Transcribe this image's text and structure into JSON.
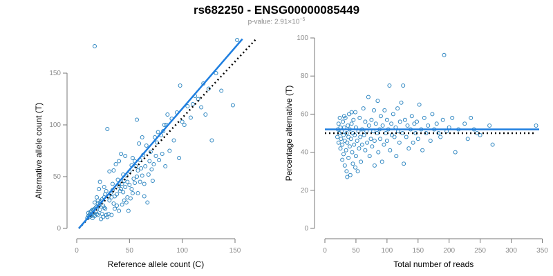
{
  "title": "rs682250 - ENSG00000085449",
  "subtitle_prefix": "p-value: 2.91×10",
  "subtitle_exp": "−5",
  "colors": {
    "points": "#2e86c1",
    "fit": "#1f7fe0",
    "reference": "#000000",
    "axis": "#777777",
    "tick_text": "#8c8c8c",
    "label_text": "#000000"
  },
  "chart_data": [
    {
      "type": "scatter",
      "xlabel": "Reference allele count (C)",
      "ylabel": "Alternative allele count (T)",
      "xlim": [
        0,
        165
      ],
      "ylim": [
        -5,
        185
      ],
      "xticks": [
        0,
        50,
        100,
        150
      ],
      "yticks": [
        0,
        50,
        100,
        150
      ],
      "fit_line": [
        [
          2,
          0
        ],
        [
          157,
          183
        ]
      ],
      "reference_line": [
        [
          2,
          0
        ],
        [
          170,
          183
        ]
      ],
      "points": [
        [
          10,
          10
        ],
        [
          11,
          12
        ],
        [
          12,
          11
        ],
        [
          12,
          13
        ],
        [
          13,
          14
        ],
        [
          11,
          15
        ],
        [
          14,
          12
        ],
        [
          15,
          14
        ],
        [
          16,
          13
        ],
        [
          13,
          16
        ],
        [
          14,
          17
        ],
        [
          15,
          10
        ],
        [
          16,
          15
        ],
        [
          17,
          12
        ],
        [
          15,
          18
        ],
        [
          16,
          18
        ],
        [
          17,
          19
        ],
        [
          18,
          16
        ],
        [
          19,
          14
        ],
        [
          20,
          13
        ],
        [
          18,
          20
        ],
        [
          19,
          21
        ],
        [
          20,
          24
        ],
        [
          21,
          22
        ],
        [
          22,
          18
        ],
        [
          17,
          25
        ],
        [
          20,
          27
        ],
        [
          22,
          25
        ],
        [
          23,
          26
        ],
        [
          24,
          28
        ],
        [
          25,
          22
        ],
        [
          26,
          20
        ],
        [
          27,
          19
        ],
        [
          24,
          14
        ],
        [
          25,
          11
        ],
        [
          28,
          13
        ],
        [
          30,
          14
        ],
        [
          26,
          30
        ],
        [
          27,
          33
        ],
        [
          28,
          36
        ],
        [
          30,
          31
        ],
        [
          31,
          27
        ],
        [
          32,
          34
        ],
        [
          33,
          30
        ],
        [
          34,
          37
        ],
        [
          35,
          24
        ],
        [
          36,
          19
        ],
        [
          36,
          31
        ],
        [
          38,
          33
        ],
        [
          38,
          22
        ],
        [
          40,
          17
        ],
        [
          40,
          41
        ],
        [
          41,
          36
        ],
        [
          42,
          38
        ],
        [
          43,
          43
        ],
        [
          44,
          35
        ],
        [
          45,
          46
        ],
        [
          45,
          27
        ],
        [
          46,
          40
        ],
        [
          47,
          51
        ],
        [
          48,
          30
        ],
        [
          48,
          45
        ],
        [
          50,
          42
        ],
        [
          50,
          55
        ],
        [
          52,
          61
        ],
        [
          52,
          38
        ],
        [
          53,
          34
        ],
        [
          54,
          48
        ],
        [
          55,
          65
        ],
        [
          55,
          44
        ],
        [
          56,
          60
        ],
        [
          57,
          50
        ],
        [
          58,
          56
        ],
        [
          60,
          45
        ],
        [
          60,
          66
        ],
        [
          61,
          58
        ],
        [
          62,
          51
        ],
        [
          63,
          71
        ],
        [
          64,
          43
        ],
        [
          65,
          60
        ],
        [
          66,
          80
        ],
        [
          68,
          52
        ],
        [
          69,
          65
        ],
        [
          70,
          74
        ],
        [
          71,
          57
        ],
        [
          72,
          46
        ],
        [
          73,
          62
        ],
        [
          74,
          88
        ],
        [
          75,
          70
        ],
        [
          76,
          83
        ],
        [
          77,
          93
        ],
        [
          78,
          66
        ],
        [
          80,
          90
        ],
        [
          81,
          72
        ],
        [
          82,
          94
        ],
        [
          83,
          100
        ],
        [
          84,
          60
        ],
        [
          86,
          110
        ],
        [
          88,
          75
        ],
        [
          90,
          106
        ],
        [
          92,
          85
        ],
        [
          95,
          112
        ],
        [
          97,
          68
        ],
        [
          98,
          138
        ],
        [
          100,
          103
        ],
        [
          102,
          100
        ],
        [
          105,
          118
        ],
        [
          108,
          107
        ],
        [
          110,
          120
        ],
        [
          112,
          128
        ],
        [
          115,
          125
        ],
        [
          118,
          117
        ],
        [
          120,
          140
        ],
        [
          122,
          110
        ],
        [
          125,
          135
        ],
        [
          128,
          85
        ],
        [
          132,
          150
        ],
        [
          137,
          133
        ],
        [
          148,
          119
        ],
        [
          152,
          182
        ],
        [
          17,
          176
        ],
        [
          29,
          96
        ],
        [
          35,
          56
        ],
        [
          40,
          65
        ],
        [
          44,
          52
        ],
        [
          57,
          105
        ],
        [
          62,
          88
        ],
        [
          85,
          100
        ],
        [
          21,
          38
        ],
        [
          26,
          40
        ],
        [
          31,
          55
        ],
        [
          34,
          43
        ],
        [
          39,
          47
        ],
        [
          43,
          23
        ],
        [
          47,
          25
        ],
        [
          49,
          17
        ],
        [
          51,
          29
        ],
        [
          58,
          34
        ],
        [
          64,
          31
        ],
        [
          67,
          25
        ],
        [
          19,
          30
        ],
        [
          22,
          45
        ],
        [
          23,
          9
        ],
        [
          29,
          11
        ],
        [
          33,
          13
        ],
        [
          37,
          62
        ],
        [
          42,
          72
        ],
        [
          46,
          70
        ],
        [
          53,
          68
        ],
        [
          59,
          82
        ]
      ]
    },
    {
      "type": "scatter",
      "xlabel": "Total number of reads",
      "ylabel": "Percentage alternative (T)",
      "xlim": [
        0,
        345
      ],
      "ylim": [
        0,
        100
      ],
      "xticks": [
        0,
        50,
        100,
        150,
        200,
        250,
        300,
        350
      ],
      "yticks": [
        0,
        20,
        40,
        60,
        80,
        100
      ],
      "fit_line": [
        [
          0,
          52
        ],
        [
          345,
          52
        ]
      ],
      "reference_line": [
        [
          0,
          50
        ],
        [
          340,
          50
        ]
      ],
      "points": [
        [
          20,
          48
        ],
        [
          21,
          52
        ],
        [
          22,
          55
        ],
        [
          22,
          45
        ],
        [
          23,
          50
        ],
        [
          24,
          58
        ],
        [
          25,
          42
        ],
        [
          25,
          53
        ],
        [
          26,
          47
        ],
        [
          27,
          51
        ],
        [
          28,
          36
        ],
        [
          28,
          44
        ],
        [
          29,
          56
        ],
        [
          30,
          49
        ],
        [
          30,
          39
        ],
        [
          31,
          53
        ],
        [
          32,
          46
        ],
        [
          32,
          33
        ],
        [
          33,
          58
        ],
        [
          34,
          41
        ],
        [
          35,
          50
        ],
        [
          35,
          30
        ],
        [
          36,
          45
        ],
        [
          37,
          54
        ],
        [
          38,
          37
        ],
        [
          38,
          48
        ],
        [
          39,
          60
        ],
        [
          40,
          43
        ],
        [
          40,
          52
        ],
        [
          41,
          28
        ],
        [
          42,
          47
        ],
        [
          43,
          55
        ],
        [
          44,
          40
        ],
        [
          45,
          50
        ],
        [
          45,
          34
        ],
        [
          46,
          57
        ],
        [
          47,
          44
        ],
        [
          48,
          49
        ],
        [
          49,
          61
        ],
        [
          50,
          38
        ],
        [
          50,
          53
        ],
        [
          52,
          46
        ],
        [
          53,
          30
        ],
        [
          54,
          51
        ],
        [
          55,
          42
        ],
        [
          56,
          58
        ],
        [
          57,
          48
        ],
        [
          58,
          35
        ],
        [
          60,
          52
        ],
        [
          60,
          44
        ],
        [
          62,
          63
        ],
        [
          63,
          49
        ],
        [
          65,
          56
        ],
        [
          65,
          41
        ],
        [
          67,
          51
        ],
        [
          68,
          45
        ],
        [
          70,
          69
        ],
        [
          71,
          54
        ],
        [
          72,
          38
        ],
        [
          74,
          47
        ],
        [
          75,
          57
        ],
        [
          76,
          43
        ],
        [
          78,
          51
        ],
        [
          79,
          62
        ],
        [
          80,
          46
        ],
        [
          80,
          33
        ],
        [
          82,
          55
        ],
        [
          84,
          50
        ],
        [
          85,
          67
        ],
        [
          86,
          40
        ],
        [
          88,
          52
        ],
        [
          89,
          47
        ],
        [
          90,
          59
        ],
        [
          92,
          35
        ],
        [
          93,
          54
        ],
        [
          95,
          44
        ],
        [
          96,
          62
        ],
        [
          98,
          50
        ],
        [
          100,
          57
        ],
        [
          100,
          46
        ],
        [
          102,
          52
        ],
        [
          104,
          75
        ],
        [
          105,
          41
        ],
        [
          107,
          55
        ],
        [
          108,
          49
        ],
        [
          110,
          60
        ],
        [
          112,
          48
        ],
        [
          114,
          53
        ],
        [
          115,
          38
        ],
        [
          117,
          63
        ],
        [
          118,
          51
        ],
        [
          120,
          45
        ],
        [
          121,
          56
        ],
        [
          123,
          66
        ],
        [
          125,
          50
        ],
        [
          126,
          75
        ],
        [
          127,
          34
        ],
        [
          129,
          57
        ],
        [
          131,
          48
        ],
        [
          133,
          54
        ],
        [
          135,
          42
        ],
        [
          138,
          52
        ],
        [
          140,
          59
        ],
        [
          142,
          45
        ],
        [
          144,
          55
        ],
        [
          146,
          50
        ],
        [
          148,
          56
        ],
        [
          150,
          47
        ],
        [
          152,
          65
        ],
        [
          155,
          52
        ],
        [
          157,
          41
        ],
        [
          160,
          58
        ],
        [
          163,
          50
        ],
        [
          166,
          54
        ],
        [
          170,
          46
        ],
        [
          173,
          60
        ],
        [
          176,
          52
        ],
        [
          180,
          55
        ],
        [
          183,
          50
        ],
        [
          186,
          48
        ],
        [
          190,
          57
        ],
        [
          192,
          91
        ],
        [
          196,
          51
        ],
        [
          200,
          53
        ],
        [
          205,
          58
        ],
        [
          210,
          40
        ],
        [
          215,
          52
        ],
        [
          225,
          55
        ],
        [
          230,
          47
        ],
        [
          235,
          58
        ],
        [
          240,
          52
        ],
        [
          245,
          50
        ],
        [
          250,
          49
        ],
        [
          265,
          54
        ],
        [
          270,
          44
        ],
        [
          340,
          54
        ],
        [
          31,
          59
        ],
        [
          36,
          27
        ],
        [
          43,
          61
        ],
        [
          49,
          32
        ]
      ]
    }
  ]
}
